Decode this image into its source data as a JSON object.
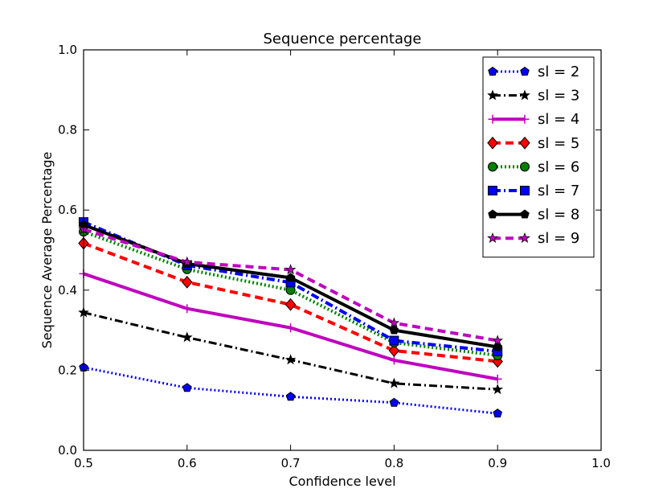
{
  "chart_data": {
    "type": "line",
    "title": "Sequence percentage",
    "xlabel": "Confidence level",
    "ylabel": "Sequence Average Percentage",
    "xlim": [
      0.5,
      1.0
    ],
    "ylim": [
      0.0,
      1.0
    ],
    "xticks": [
      "0.5",
      "0.6",
      "0.7",
      "0.8",
      "0.9",
      "1.0"
    ],
    "yticks": [
      "0.0",
      "0.2",
      "0.4",
      "0.6",
      "0.8",
      "1.0"
    ],
    "x": [
      0.5,
      0.6,
      0.7,
      0.8,
      0.9
    ],
    "legend_position": "top-right",
    "series": [
      {
        "name": "sl = 2",
        "values": [
          0.207,
          0.156,
          0.134,
          0.119,
          0.092
        ],
        "color": "#0000ff",
        "linestyle": "dotted",
        "marker": "pentagon",
        "linewidth": 3
      },
      {
        "name": "sl = 3",
        "values": [
          0.344,
          0.282,
          0.226,
          0.167,
          0.152
        ],
        "color": "#000000",
        "linestyle": "dashdot",
        "marker": "star",
        "linewidth": 3
      },
      {
        "name": "sl = 4",
        "values": [
          0.441,
          0.354,
          0.306,
          0.225,
          0.178
        ],
        "color": "#bf00bf",
        "linestyle": "solid",
        "marker": "plus",
        "linewidth": 4
      },
      {
        "name": "sl = 5",
        "values": [
          0.517,
          0.42,
          0.364,
          0.249,
          0.222
        ],
        "color": "#ff0000",
        "linestyle": "dashed",
        "marker": "diamond",
        "linewidth": 4
      },
      {
        "name": "sl = 6",
        "values": [
          0.546,
          0.452,
          0.4,
          0.269,
          0.237
        ],
        "color": "#008000",
        "linestyle": "dotted",
        "marker": "circle",
        "linewidth": 4
      },
      {
        "name": "sl = 7",
        "values": [
          0.57,
          0.462,
          0.419,
          0.274,
          0.247
        ],
        "color": "#0000ff",
        "linestyle": "dashdot",
        "marker": "square",
        "linewidth": 4
      },
      {
        "name": "sl = 8",
        "values": [
          0.563,
          0.466,
          0.431,
          0.3,
          0.258
        ],
        "color": "#000000",
        "linestyle": "solid",
        "marker": "pentagon",
        "linewidth": 4
      },
      {
        "name": "sl = 9",
        "values": [
          0.552,
          0.47,
          0.451,
          0.318,
          0.274
        ],
        "color": "#bf00bf",
        "linestyle": "dashed",
        "marker": "star",
        "linewidth": 4
      }
    ]
  }
}
